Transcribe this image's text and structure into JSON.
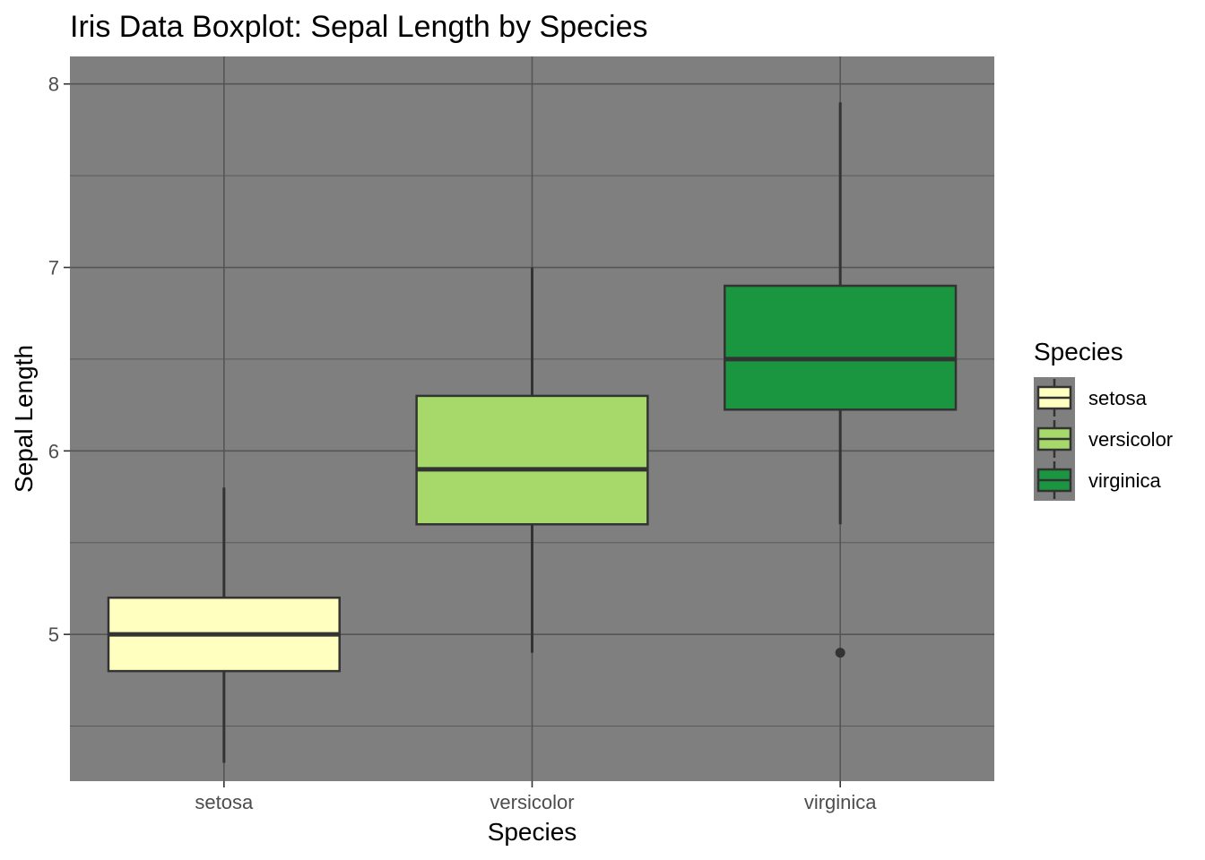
{
  "chart_data": {
    "type": "boxplot",
    "title": "Iris Data Boxplot: Sepal Length by Species",
    "xlabel": "Species",
    "ylabel": "Sepal Length",
    "ylim": [
      4.2,
      8.15
    ],
    "y_ticks": [
      5,
      6,
      7,
      8
    ],
    "y_tick_labels": [
      "5",
      "6",
      "7",
      "8"
    ],
    "grid": true,
    "panel_background": "#7f7f7f",
    "legend": {
      "title": "Species",
      "placement": "right"
    },
    "categories": [
      "setosa",
      "versicolor",
      "virginica"
    ],
    "series": [
      {
        "name": "setosa",
        "color": "#ffffbf",
        "min": 4.3,
        "q1": 4.8,
        "median": 5.0,
        "q3": 5.2,
        "max": 5.8,
        "outliers": []
      },
      {
        "name": "versicolor",
        "color": "#a6d96a",
        "min": 4.9,
        "q1": 5.6,
        "median": 5.9,
        "q3": 6.3,
        "max": 7.0,
        "outliers": []
      },
      {
        "name": "virginica",
        "color": "#1a9641",
        "min": 5.6,
        "q1": 6.225,
        "median": 6.5,
        "q3": 6.9,
        "max": 7.9,
        "outliers": [
          4.9
        ]
      }
    ]
  }
}
